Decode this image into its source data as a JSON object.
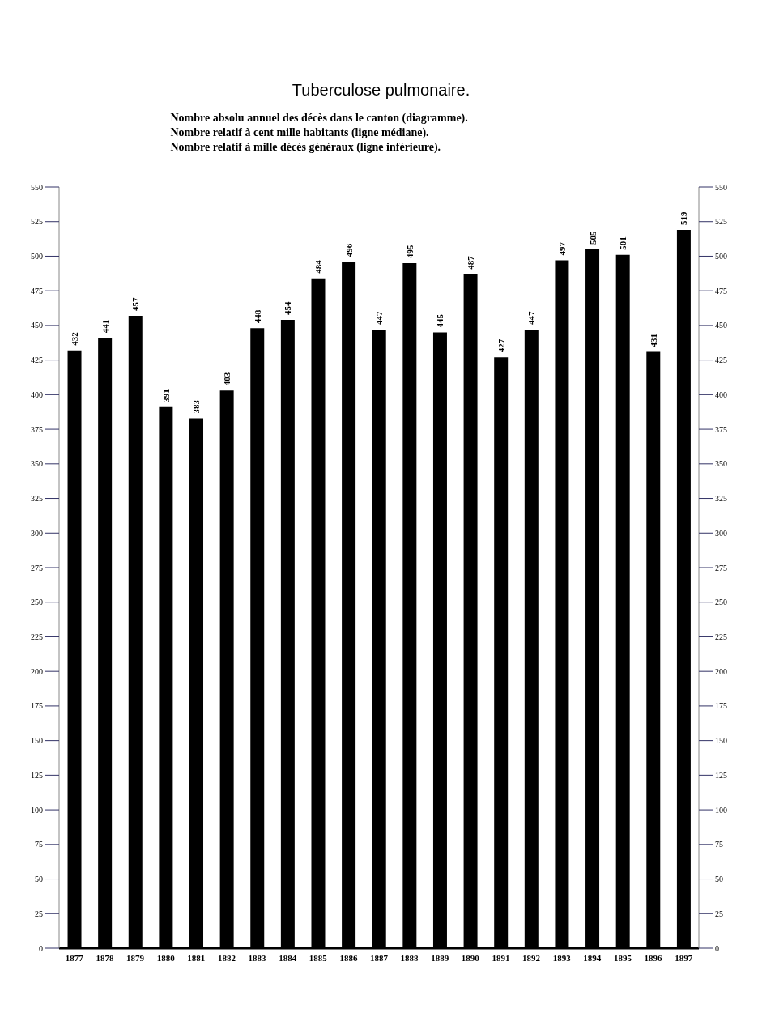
{
  "chart_data": {
    "type": "bar",
    "title": "Tuberculose pulmonaire.",
    "subtitle": "Nombre absolu annuel des décès dans le canton (diagramme).\nNombre relatif à cent mille habitants (ligne médiane).\nNombre relatif à mille décès généraux (ligne inférieure).",
    "categories": [
      "1877",
      "1878",
      "1879",
      "1880",
      "1881",
      "1882",
      "1883",
      "1884",
      "1885",
      "1886",
      "1887",
      "1888",
      "1889",
      "1890",
      "1891",
      "1892",
      "1893",
      "1894",
      "1895",
      "1896",
      "1897"
    ],
    "values": [
      432,
      441,
      457,
      391,
      383,
      403,
      448,
      454,
      484,
      496,
      447,
      495,
      445,
      487,
      427,
      447,
      497,
      505,
      501,
      431,
      519
    ],
    "color": "#000000",
    "ylim": [
      0,
      550
    ],
    "yticks": [
      0,
      25,
      50,
      75,
      100,
      125,
      150,
      175,
      200,
      225,
      250,
      275,
      300,
      325,
      350,
      375,
      400,
      425,
      450,
      475,
      500,
      525,
      550
    ],
    "y2lim": [
      0,
      550
    ],
    "y2ticks": [
      0,
      25,
      50,
      75,
      100,
      125,
      150,
      175,
      200,
      225,
      250,
      275,
      300,
      325,
      350,
      375,
      400,
      425,
      450,
      475,
      500,
      525,
      550
    ],
    "data_labels": true,
    "grid": false
  }
}
